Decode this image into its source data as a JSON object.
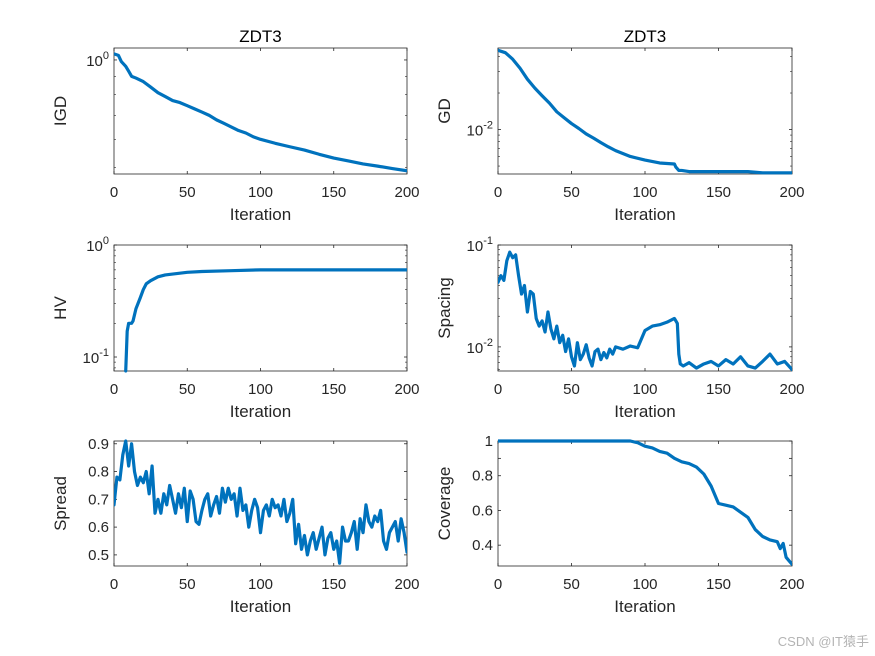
{
  "line_color": "#0072BD",
  "watermark": "CSDN @IT猿手",
  "chart_data": [
    {
      "id": "igd",
      "type": "line",
      "title": "ZDT3",
      "xlabel": "Iteration",
      "ylabel": "IGD",
      "yscale": "log",
      "xlim": [
        0,
        200
      ],
      "ylim": [
        0.48,
        1.08
      ],
      "xticks": [
        0,
        50,
        100,
        150,
        200
      ],
      "yticks": [
        {
          "v": 1,
          "mant": "10",
          "exp": "0"
        }
      ],
      "x": [
        0,
        3,
        5,
        8,
        10,
        12,
        15,
        20,
        25,
        30,
        35,
        40,
        45,
        50,
        55,
        60,
        65,
        70,
        75,
        80,
        85,
        90,
        95,
        100,
        110,
        120,
        130,
        140,
        150,
        160,
        170,
        180,
        190,
        200
      ],
      "y": [
        1.04,
        1.03,
        0.99,
        0.96,
        0.93,
        0.9,
        0.89,
        0.87,
        0.84,
        0.81,
        0.79,
        0.77,
        0.76,
        0.745,
        0.73,
        0.715,
        0.7,
        0.68,
        0.665,
        0.65,
        0.635,
        0.625,
        0.61,
        0.6,
        0.585,
        0.572,
        0.56,
        0.545,
        0.532,
        0.522,
        0.512,
        0.505,
        0.497,
        0.49
      ]
    },
    {
      "id": "gd",
      "type": "line",
      "title": "ZDT3",
      "xlabel": "Iteration",
      "ylabel": "GD",
      "yscale": "log",
      "xlim": [
        0,
        200
      ],
      "ylim": [
        0.0043,
        0.047
      ],
      "xticks": [
        0,
        50,
        100,
        150,
        200
      ],
      "yticks": [
        {
          "v": 0.01,
          "mant": "10",
          "exp": "-2"
        }
      ],
      "x": [
        0,
        5,
        10,
        15,
        20,
        25,
        30,
        35,
        40,
        45,
        50,
        55,
        60,
        65,
        70,
        75,
        80,
        90,
        100,
        110,
        120,
        121,
        123,
        125,
        130,
        140,
        150,
        160,
        170,
        180,
        190,
        200
      ],
      "y": [
        0.045,
        0.043,
        0.038,
        0.032,
        0.026,
        0.022,
        0.019,
        0.0165,
        0.014,
        0.0125,
        0.0112,
        0.0102,
        0.0092,
        0.0085,
        0.0078,
        0.0072,
        0.0067,
        0.006,
        0.0056,
        0.0053,
        0.0052,
        0.0049,
        0.0046,
        0.0046,
        0.0045,
        0.0045,
        0.0045,
        0.0045,
        0.0045,
        0.0044,
        0.0044,
        0.0044
      ]
    },
    {
      "id": "hv",
      "type": "line",
      "title": "",
      "xlabel": "Iteration",
      "ylabel": "HV",
      "yscale": "log",
      "xlim": [
        0,
        200
      ],
      "ylim": [
        0.075,
        1.0
      ],
      "xticks": [
        0,
        50,
        100,
        150,
        200
      ],
      "yticks": [
        {
          "v": 0.1,
          "mant": "10",
          "exp": "-1"
        },
        {
          "v": 1,
          "mant": "10",
          "exp": "0"
        }
      ],
      "x": [
        8,
        9,
        10,
        12,
        13,
        15,
        18,
        20,
        22,
        25,
        30,
        35,
        40,
        50,
        60,
        80,
        100,
        120,
        150,
        200
      ],
      "y": [
        0.075,
        0.17,
        0.2,
        0.2,
        0.21,
        0.27,
        0.34,
        0.4,
        0.45,
        0.48,
        0.52,
        0.54,
        0.55,
        0.57,
        0.58,
        0.59,
        0.6,
        0.6,
        0.6,
        0.6
      ]
    },
    {
      "id": "spacing",
      "type": "line",
      "title": "",
      "xlabel": "Iteration",
      "ylabel": "Spacing",
      "yscale": "log",
      "xlim": [
        0,
        200
      ],
      "ylim": [
        0.0058,
        0.1
      ],
      "xticks": [
        0,
        50,
        100,
        150,
        200
      ],
      "yticks": [
        {
          "v": 0.01,
          "mant": "10",
          "exp": "-2"
        },
        {
          "v": 0.1,
          "mant": "10",
          "exp": "-1"
        }
      ],
      "x": [
        0,
        2,
        4,
        6,
        8,
        10,
        12,
        14,
        16,
        18,
        20,
        22,
        24,
        26,
        28,
        30,
        32,
        34,
        36,
        38,
        40,
        42,
        44,
        46,
        48,
        50,
        52,
        54,
        56,
        58,
        60,
        62,
        64,
        66,
        68,
        70,
        72,
        74,
        76,
        78,
        80,
        85,
        90,
        95,
        100,
        105,
        110,
        115,
        120,
        122,
        123,
        124,
        126,
        130,
        135,
        140,
        145,
        150,
        155,
        160,
        165,
        170,
        175,
        180,
        185,
        190,
        195,
        200
      ],
      "y": [
        0.043,
        0.05,
        0.045,
        0.07,
        0.085,
        0.075,
        0.08,
        0.05,
        0.033,
        0.04,
        0.022,
        0.035,
        0.033,
        0.019,
        0.016,
        0.018,
        0.014,
        0.022,
        0.015,
        0.012,
        0.016,
        0.011,
        0.013,
        0.009,
        0.012,
        0.008,
        0.0065,
        0.011,
        0.0075,
        0.0085,
        0.0105,
        0.0078,
        0.0065,
        0.009,
        0.0095,
        0.0075,
        0.0088,
        0.0078,
        0.0095,
        0.0085,
        0.01,
        0.0095,
        0.0102,
        0.0098,
        0.0145,
        0.016,
        0.0165,
        0.0175,
        0.019,
        0.017,
        0.0085,
        0.0068,
        0.0065,
        0.007,
        0.0062,
        0.0068,
        0.0072,
        0.0065,
        0.0075,
        0.0068,
        0.008,
        0.0065,
        0.0062,
        0.0072,
        0.0085,
        0.0068,
        0.0072,
        0.006
      ]
    },
    {
      "id": "spread",
      "type": "line",
      "title": "",
      "xlabel": "Iteration",
      "ylabel": "Spread",
      "yscale": "linear",
      "xlim": [
        0,
        200
      ],
      "ylim": [
        0.46,
        0.91
      ],
      "xticks": [
        0,
        50,
        100,
        150,
        200
      ],
      "yticks": [
        {
          "v": 0.5,
          "label": "0.5"
        },
        {
          "v": 0.6,
          "label": "0.6"
        },
        {
          "v": 0.7,
          "label": "0.7"
        },
        {
          "v": 0.8,
          "label": "0.8"
        },
        {
          "v": 0.9,
          "label": "0.9"
        }
      ],
      "x": [
        0,
        2,
        4,
        6,
        8,
        10,
        12,
        14,
        16,
        18,
        20,
        22,
        24,
        26,
        28,
        30,
        32,
        34,
        36,
        38,
        40,
        42,
        44,
        46,
        48,
        50,
        52,
        54,
        56,
        58,
        60,
        62,
        64,
        66,
        68,
        70,
        72,
        74,
        76,
        78,
        80,
        82,
        84,
        86,
        88,
        90,
        92,
        94,
        96,
        98,
        100,
        102,
        104,
        106,
        108,
        110,
        112,
        114,
        116,
        118,
        120,
        122,
        124,
        126,
        128,
        130,
        132,
        134,
        136,
        138,
        140,
        142,
        144,
        146,
        148,
        150,
        152,
        154,
        156,
        158,
        160,
        162,
        164,
        166,
        168,
        170,
        172,
        174,
        176,
        178,
        180,
        182,
        184,
        186,
        188,
        190,
        192,
        194,
        196,
        198,
        200
      ],
      "y": [
        0.68,
        0.78,
        0.77,
        0.86,
        0.91,
        0.82,
        0.9,
        0.8,
        0.75,
        0.78,
        0.76,
        0.8,
        0.72,
        0.82,
        0.65,
        0.7,
        0.65,
        0.72,
        0.68,
        0.75,
        0.7,
        0.65,
        0.72,
        0.67,
        0.74,
        0.62,
        0.73,
        0.7,
        0.62,
        0.61,
        0.66,
        0.7,
        0.72,
        0.64,
        0.68,
        0.71,
        0.65,
        0.74,
        0.69,
        0.74,
        0.7,
        0.72,
        0.64,
        0.74,
        0.66,
        0.68,
        0.6,
        0.66,
        0.7,
        0.67,
        0.58,
        0.66,
        0.68,
        0.64,
        0.7,
        0.67,
        0.68,
        0.64,
        0.7,
        0.62,
        0.65,
        0.7,
        0.54,
        0.61,
        0.52,
        0.57,
        0.5,
        0.55,
        0.58,
        0.52,
        0.56,
        0.6,
        0.5,
        0.56,
        0.58,
        0.52,
        0.55,
        0.47,
        0.6,
        0.55,
        0.55,
        0.58,
        0.62,
        0.52,
        0.63,
        0.58,
        0.68,
        0.62,
        0.6,
        0.64,
        0.62,
        0.66,
        0.55,
        0.52,
        0.58,
        0.6,
        0.62,
        0.55,
        0.63,
        0.58,
        0.51
      ]
    },
    {
      "id": "coverage",
      "type": "line",
      "title": "",
      "xlabel": "Iteration",
      "ylabel": "Coverage",
      "yscale": "linear",
      "xlim": [
        0,
        200
      ],
      "ylim": [
        0.28,
        1.0
      ],
      "xticks": [
        0,
        50,
        100,
        150,
        200
      ],
      "yticks": [
        {
          "v": 0.4,
          "label": "0.4"
        },
        {
          "v": 0.6,
          "label": "0.6"
        },
        {
          "v": 0.8,
          "label": "0.8"
        },
        {
          "v": 0.9,
          "label": ""
        },
        {
          "v": 1,
          "label": "1"
        }
      ],
      "x": [
        0,
        50,
        90,
        95,
        100,
        105,
        110,
        115,
        120,
        125,
        130,
        135,
        140,
        145,
        150,
        155,
        160,
        165,
        170,
        175,
        180,
        185,
        190,
        192,
        194,
        196,
        198,
        200
      ],
      "y": [
        1,
        1,
        1,
        0.99,
        0.97,
        0.96,
        0.94,
        0.93,
        0.9,
        0.88,
        0.87,
        0.85,
        0.81,
        0.74,
        0.64,
        0.63,
        0.62,
        0.59,
        0.56,
        0.49,
        0.45,
        0.43,
        0.42,
        0.38,
        0.41,
        0.33,
        0.31,
        0.29
      ]
    }
  ]
}
